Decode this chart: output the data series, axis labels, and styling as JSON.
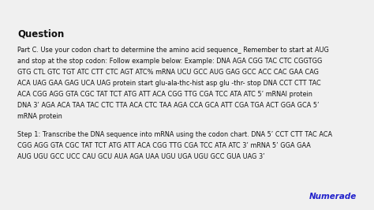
{
  "background_color": "#f0f0f0",
  "body_color": "#111111",
  "title": "Question",
  "title_fontsize": 8.5,
  "body_fontsize": 5.9,
  "paragraph1_lines": [
    "Part C. Use your codon chart to determine the amino acid sequence_ Remember to start at AUG",
    "and stop at the stop codon: Follow example below: Example: DNA AGA CGG TAC CTC CGGTGG",
    "GTG CTL GTC TGT ATC CTT CTC AGT ATC% mRNA UCU GCC AUG GAG GCC ACC CAC GAA CAG",
    "ACA UAG GAA GAG UCA UAG protein start glu-ala-thc-hist asp glu -thr- stop DNA CCT CTT TAC",
    "ACA CGG AGG GTA CGC TAT TCT ATG ATT ACA CGG TTG CGA TCC ATA ATC 5’ mRNAI protein",
    "DNA 3’ AGA ACA TAA TAC CTC TTA ACA CTC TAA AGA CCA GCA ATT CGA TGA ACT GGA GCA 5’",
    "mRNA protein"
  ],
  "paragraph2_lines": [
    "Step 1: Transcribe the DNA sequence into mRNA using the codon chart. DNA 5’ CCT CTT TAC ACA",
    "CGG AGG GTA CGC TAT TCT ATG ATT ACA CGG TTG CGA TCC ATA ATC 3’ mRNA 5’ GGA GAA",
    "AUG UGU GCC UCC CAU GCU AUA AGA UAA UGU UGA UGU GCC GUA UAG 3’"
  ],
  "numerade_color": "#2222cc",
  "numerade_text": "Numerade",
  "numerade_fontsize": 7.5
}
